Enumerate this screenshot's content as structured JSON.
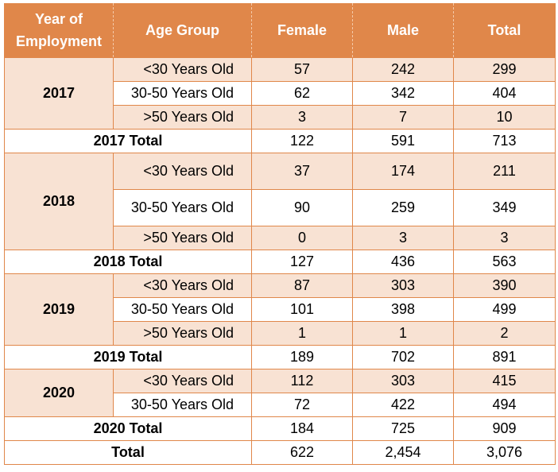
{
  "header": {
    "year_line1": "Year of",
    "year_line2": "Employment",
    "age_group": "Age Group",
    "female": "Female",
    "male": "Male",
    "total": "Total"
  },
  "groups": [
    {
      "year": "2017",
      "rows": [
        {
          "age": "<30 Years Old",
          "female": "57",
          "male": "242",
          "total": "299"
        },
        {
          "age": "30-50 Years Old",
          "female": "62",
          "male": "342",
          "total": "404"
        },
        {
          "age": ">50 Years Old",
          "female": "3",
          "male": "7",
          "total": "10"
        }
      ],
      "subtotal": {
        "label": "2017 Total",
        "female": "122",
        "male": "591",
        "total": "713"
      }
    },
    {
      "year": "2018",
      "rows": [
        {
          "age": "<30 Years Old",
          "female": "37",
          "male": "174",
          "total": "211"
        },
        {
          "age": "30-50 Years Old",
          "female": "90",
          "male": "259",
          "total": "349"
        },
        {
          "age": ">50 Years Old",
          "female": "0",
          "male": "3",
          "total": "3"
        }
      ],
      "subtotal": {
        "label": "2018 Total",
        "female": "127",
        "male": "436",
        "total": "563"
      }
    },
    {
      "year": "2019",
      "rows": [
        {
          "age": "<30 Years Old",
          "female": "87",
          "male": "303",
          "total": "390"
        },
        {
          "age": "30-50 Years Old",
          "female": "101",
          "male": "398",
          "total": "499"
        },
        {
          "age": ">50 Years Old",
          "female": "1",
          "male": "1",
          "total": "2"
        }
      ],
      "subtotal": {
        "label": "2019 Total",
        "female": "189",
        "male": "702",
        "total": "891"
      }
    },
    {
      "year": "2020",
      "rows": [
        {
          "age": "<30 Years Old",
          "female": "112",
          "male": "303",
          "total": "415"
        },
        {
          "age": "30-50 Years Old",
          "female": "72",
          "male": "422",
          "total": "494"
        }
      ],
      "subtotal": {
        "label": "2020 Total",
        "female": "184",
        "male": "725",
        "total": "909"
      }
    }
  ],
  "grand_total": {
    "label": "Total",
    "female": "622",
    "male": "2,454",
    "total": "3,076"
  },
  "colors": {
    "header_bg": "#e0874a",
    "header_text": "#ffffff",
    "band_fill": "#f8e2d3",
    "border": "#e0874a"
  }
}
